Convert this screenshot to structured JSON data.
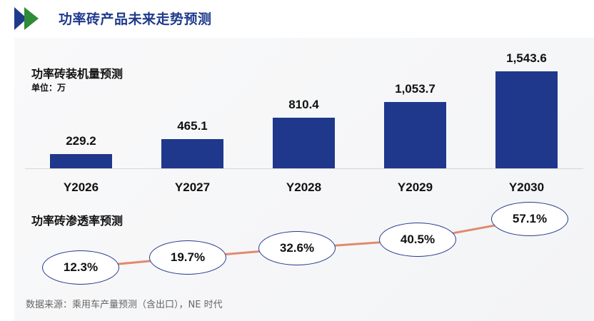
{
  "header": {
    "title": "功率砖产品未来走势预测",
    "logo_icon": "double-chevron-right-icon"
  },
  "colors": {
    "bar": "#1f388c",
    "title": "#1f3a8c",
    "line": "#e08a6e",
    "ellipse_border": "#233a8f",
    "logo_blue": "#1f3a8c",
    "logo_green": "#2e8b3a"
  },
  "bar_section": {
    "title": "功率砖装机量预测",
    "unit": "单位：万"
  },
  "line_section": {
    "title": "功率砖渗透率预测"
  },
  "source": "数据来源：乘用车产量预测（含出口），NE 时代",
  "chart_data": [
    {
      "type": "bar",
      "title": "功率砖装机量预测",
      "ylabel": "单位：万",
      "categories": [
        "Y2026",
        "Y2027",
        "Y2028",
        "Y2029",
        "Y2030"
      ],
      "values": [
        229.2,
        465.1,
        810.4,
        1053.7,
        1543.6
      ],
      "value_labels": [
        "229.2",
        "465.1",
        "810.4",
        "1,053.7",
        "1,543.6"
      ],
      "grid": false
    },
    {
      "type": "line",
      "title": "功率砖渗透率预测",
      "categories": [
        "Y2026",
        "Y2027",
        "Y2028",
        "Y2029",
        "Y2030"
      ],
      "values": [
        12.3,
        19.7,
        32.6,
        40.5,
        57.1
      ],
      "value_labels": [
        "12.3%",
        "19.7%",
        "32.6%",
        "40.5%",
        "57.1%"
      ],
      "unit": "%"
    }
  ]
}
